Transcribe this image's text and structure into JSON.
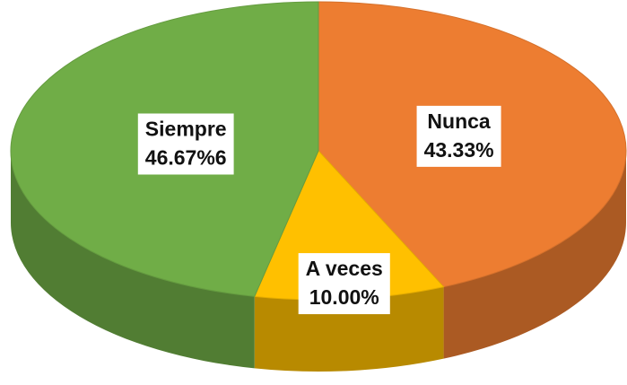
{
  "chart_data": {
    "type": "pie",
    "categories": [
      "Nunca",
      "A veces",
      "Siempre"
    ],
    "values": [
      43.33,
      10.0,
      46.67
    ],
    "value_labels": [
      "43.33%",
      "10.00%",
      "46.67%6"
    ],
    "colors": [
      "#ed7d31",
      "#ffc000",
      "#70ad47"
    ]
  }
}
